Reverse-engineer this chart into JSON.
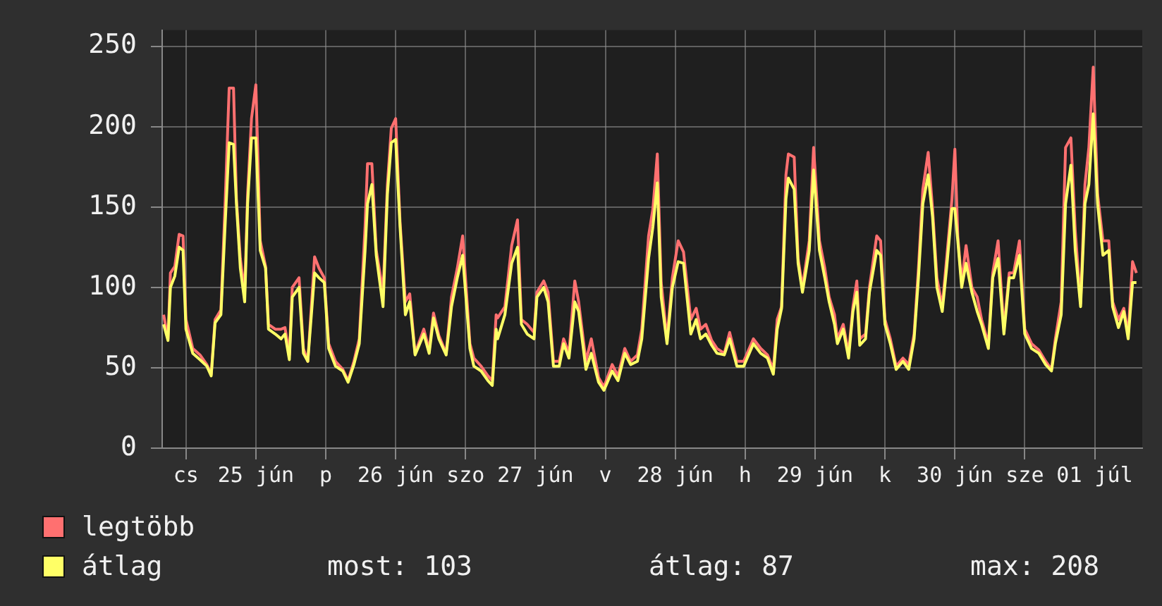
{
  "chart_data": {
    "type": "line",
    "x": [
      "--06-24T20:10",
      "--06-24T20:55",
      "--06-24T21:20",
      "--06-24T22:05",
      "--06-24T22:50",
      "--06-24T23:30",
      "--06-25T00:00",
      "--06-25T01:10",
      "--06-25T02:25",
      "--06-25T03:35",
      "--06-25T04:20",
      "--06-25T05:00",
      "--06-25T06:00",
      "--06-25T06:45",
      "--06-25T07:25",
      "--06-25T08:10",
      "--06-25T08:40",
      "--06-25T09:20",
      "--06-25T10:05",
      "--06-25T10:35",
      "--06-25T11:15",
      "--06-25T12:00",
      "--06-25T12:45",
      "--06-25T13:40",
      "--06-25T14:10",
      "--06-25T15:20",
      "--06-25T16:20",
      "--06-25T17:00",
      "--06-25T17:45",
      "--06-25T18:15",
      "--06-25T19:25",
      "--06-25T20:10",
      "--06-25T20:55",
      "--06-25T22:05",
      "--06-25T22:50",
      "--06-25T23:45",
      "--06-26T00:30",
      "--06-26T01:40",
      "--06-26T02:55",
      "--06-26T03:50",
      "--06-26T04:50",
      "--06-26T05:45",
      "--06-26T06:45",
      "--06-26T07:10",
      "--06-26T07:55",
      "--06-26T08:40",
      "--06-26T09:50",
      "--06-26T10:35",
      "--06-26T11:15",
      "--06-26T12:00",
      "--06-26T12:45",
      "--06-26T13:40",
      "--06-26T14:25",
      "--06-26T15:20",
      "--06-26T16:50",
      "--06-26T17:45",
      "--06-26T18:30",
      "--06-26T19:25",
      "--06-26T20:40",
      "--06-26T21:35",
      "--06-26T22:35",
      "--06-26T23:30",
      "--06-27T00:45",
      "--06-27T01:25",
      "--06-27T02:40",
      "--06-27T03:50",
      "--06-27T04:35",
      "--06-27T05:15",
      "--06-27T05:30",
      "--06-27T06:45",
      "--06-27T07:55",
      "--06-27T08:55",
      "--06-27T09:35",
      "--06-27T10:35",
      "--06-27T11:45",
      "--06-27T12:15",
      "--06-27T13:25",
      "--06-27T14:10",
      "--06-27T15:05",
      "--06-27T16:05",
      "--06-27T16:50",
      "--06-27T17:45",
      "--06-27T18:45",
      "--06-27T19:25",
      "--06-27T20:40",
      "--06-27T21:35",
      "--06-27T22:50",
      "--06-27T23:45",
      "--06-28T01:10",
      "--06-28T02:10",
      "--06-28T03:20",
      "--06-28T04:20",
      "--06-28T05:30",
      "--06-28T06:15",
      "--06-28T07:25",
      "--06-28T08:10",
      "--06-28T08:55",
      "--06-28T09:35",
      "--06-28T10:35",
      "--06-28T11:30",
      "--06-28T12:30",
      "--06-28T13:25",
      "--06-28T14:40",
      "--06-28T15:35",
      "--06-28T16:20",
      "--06-28T17:15",
      "--06-28T18:15",
      "--06-28T19:10",
      "--06-28T20:25",
      "--06-28T21:20",
      "--06-28T22:35",
      "--06-28T23:45",
      "--06-29T01:25",
      "--06-29T02:40",
      "--06-29T03:50",
      "--06-29T04:50",
      "--06-29T05:30",
      "--06-29T06:15",
      "--06-29T07:00",
      "--06-29T07:25",
      "--06-29T08:25",
      "--06-29T09:05",
      "--06-29T09:50",
      "--06-29T11:00",
      "--06-29T11:45",
      "--06-29T12:45",
      "--06-29T13:40",
      "--06-29T14:25",
      "--06-29T15:20",
      "--06-29T15:50",
      "--06-29T16:50",
      "--06-29T17:45",
      "--06-29T18:30",
      "--06-29T19:10",
      "--06-29T19:40",
      "--06-29T20:40",
      "--06-29T21:20",
      "--06-29T22:35",
      "--06-29T23:15",
      "--06-30T00:00",
      "--06-30T00:55",
      "--06-30T01:55",
      "--06-30T03:05",
      "--06-30T04:05",
      "--06-30T05:00",
      "--06-30T05:45",
      "--06-30T06:30",
      "--06-30T07:25",
      "--06-30T08:10",
      "--06-30T08:55",
      "--06-30T09:50",
      "--06-30T10:35",
      "--06-30T11:30",
      "--06-30T12:00",
      "--06-30T12:30",
      "--06-30T13:10",
      "--06-30T13:55",
      "--06-30T14:55",
      "--06-30T15:50",
      "--06-30T16:35",
      "--06-30T17:45",
      "--06-30T18:30",
      "--06-30T19:25",
      "--06-30T20:25",
      "--06-30T21:20",
      "--06-30T22:05",
      "--06-30T23:05",
      "--07-01T00:00",
      "--07-01T01:10",
      "--07-01T02:25",
      "--07-01T03:35",
      "--07-01T04:35",
      "--07-01T05:15",
      "--07-01T06:15",
      "--07-01T07:00",
      "--07-01T07:55",
      "--07-01T08:40",
      "--07-01T09:35",
      "--07-01T10:20",
      "--07-01T11:00",
      "--07-01T11:45",
      "--07-01T12:30",
      "--07-01T13:25",
      "--07-01T14:25",
      "--07-01T15:05",
      "--07-01T16:05",
      "--07-01T17:00",
      "--07-01T17:45",
      "--07-01T18:30",
      "--07-01T19:10"
    ],
    "series": [
      {
        "name": "legtöbb",
        "color": "#ff7070",
        "values": [
          83,
          68,
          109,
          113,
          133,
          132,
          80,
          62,
          58,
          52,
          46,
          80,
          86,
          155,
          224,
          224,
          155,
          118,
          97,
          158,
          205,
          226,
          129,
          113,
          77,
          74,
          74,
          75,
          58,
          100,
          106,
          62,
          54,
          119,
          112,
          106,
          65,
          54,
          49,
          42,
          54,
          68,
          138,
          177,
          177,
          123,
          97,
          164,
          199,
          205,
          141,
          91,
          96,
          59,
          74,
          61,
          84,
          70,
          59,
          94,
          112,
          132,
          65,
          56,
          51,
          45,
          42,
          83,
          81,
          88,
          126,
          142,
          80,
          77,
          72,
          97,
          104,
          97,
          54,
          54,
          68,
          59,
          104,
          91,
          54,
          68,
          44,
          38,
          52,
          45,
          62,
          54,
          58,
          74,
          132,
          149,
          183,
          103,
          68,
          106,
          129,
          122,
          80,
          87,
          74,
          77,
          67,
          62,
          59,
          72,
          54,
          54,
          68,
          62,
          58,
          49,
          80,
          88,
          170,
          183,
          181,
          118,
          100,
          129,
          187,
          129,
          112,
          94,
          83,
          68,
          77,
          59,
          88,
          104,
          68,
          71,
          100,
          132,
          129,
          80,
          68,
          51,
          56,
          52,
          71,
          112,
          161,
          184,
          149,
          106,
          88,
          118,
          155,
          186,
          132,
          103,
          126,
          100,
          94,
          80,
          65,
          109,
          129,
          74,
          109,
          109,
          129,
          74,
          65,
          61,
          54,
          49,
          68,
          91,
          187,
          193,
          135,
          90,
          164,
          187,
          237,
          158,
          129,
          129,
          91,
          80,
          87,
          71,
          116,
          109
        ]
      },
      {
        "name": "átlag",
        "color": "#ffff66",
        "values": [
          77,
          67,
          100,
          107,
          125,
          123,
          74,
          59,
          55,
          51,
          45,
          78,
          83,
          141,
          190,
          189,
          152,
          112,
          91,
          152,
          193,
          193,
          123,
          112,
          74,
          71,
          68,
          71,
          55,
          94,
          100,
          59,
          54,
          109,
          106,
          103,
          62,
          51,
          48,
          41,
          52,
          65,
          123,
          152,
          164,
          120,
          88,
          158,
          190,
          192,
          138,
          83,
          91,
          58,
          71,
          59,
          81,
          68,
          58,
          88,
          106,
          120,
          62,
          51,
          48,
          42,
          39,
          74,
          68,
          83,
          115,
          125,
          77,
          71,
          68,
          94,
          100,
          91,
          51,
          51,
          65,
          56,
          91,
          85,
          49,
          59,
          41,
          36,
          48,
          42,
          59,
          52,
          54,
          68,
          118,
          138,
          165,
          94,
          65,
          100,
          116,
          115,
          71,
          80,
          68,
          71,
          64,
          59,
          58,
          68,
          51,
          51,
          65,
          59,
          56,
          46,
          74,
          87,
          155,
          168,
          161,
          115,
          97,
          123,
          173,
          123,
          106,
          91,
          77,
          65,
          74,
          56,
          85,
          97,
          64,
          68,
          97,
          123,
          120,
          77,
          65,
          49,
          54,
          49,
          68,
          106,
          152,
          170,
          144,
          100,
          85,
          112,
          149,
          149,
          129,
          100,
          115,
          97,
          85,
          77,
          62,
          106,
          118,
          71,
          106,
          106,
          120,
          71,
          62,
          59,
          52,
          48,
          65,
          83,
          152,
          176,
          123,
          88,
          152,
          164,
          208,
          152,
          120,
          123,
          88,
          75,
          85,
          68,
          103,
          103
        ]
      }
    ],
    "xlim": [
      "--06-24T19:55",
      "--07-01T20:10"
    ],
    "xticks": [
      {
        "value": "--06-25T00:00",
        "label": "cs"
      },
      {
        "value": "--06-25T12:00",
        "label": "25 jún"
      },
      {
        "value": "--06-26T00:00",
        "label": "p"
      },
      {
        "value": "--06-26T12:00",
        "label": "26 jún"
      },
      {
        "value": "--06-27T00:00",
        "label": "szo"
      },
      {
        "value": "--06-27T12:00",
        "label": "27 jún"
      },
      {
        "value": "--06-28T00:00",
        "label": "v"
      },
      {
        "value": "--06-28T12:00",
        "label": "28 jún"
      },
      {
        "value": "--06-29T00:00",
        "label": "h"
      },
      {
        "value": "--06-29T12:00",
        "label": "29 jún"
      },
      {
        "value": "--06-30T00:00",
        "label": "k"
      },
      {
        "value": "--06-30T12:00",
        "label": "30 jún"
      },
      {
        "value": "--07-01T00:00",
        "label": "sze"
      },
      {
        "value": "--07-01T12:00",
        "label": "01 júl"
      }
    ],
    "ylim": [
      0,
      260
    ],
    "yticks": [
      0,
      50,
      100,
      150,
      200,
      250
    ],
    "grid": true,
    "legend": "bottom left",
    "marker": "none",
    "line_style": "solid",
    "annotations": [
      "most: 103",
      "átlag: 87",
      "max: 208"
    ]
  }
}
